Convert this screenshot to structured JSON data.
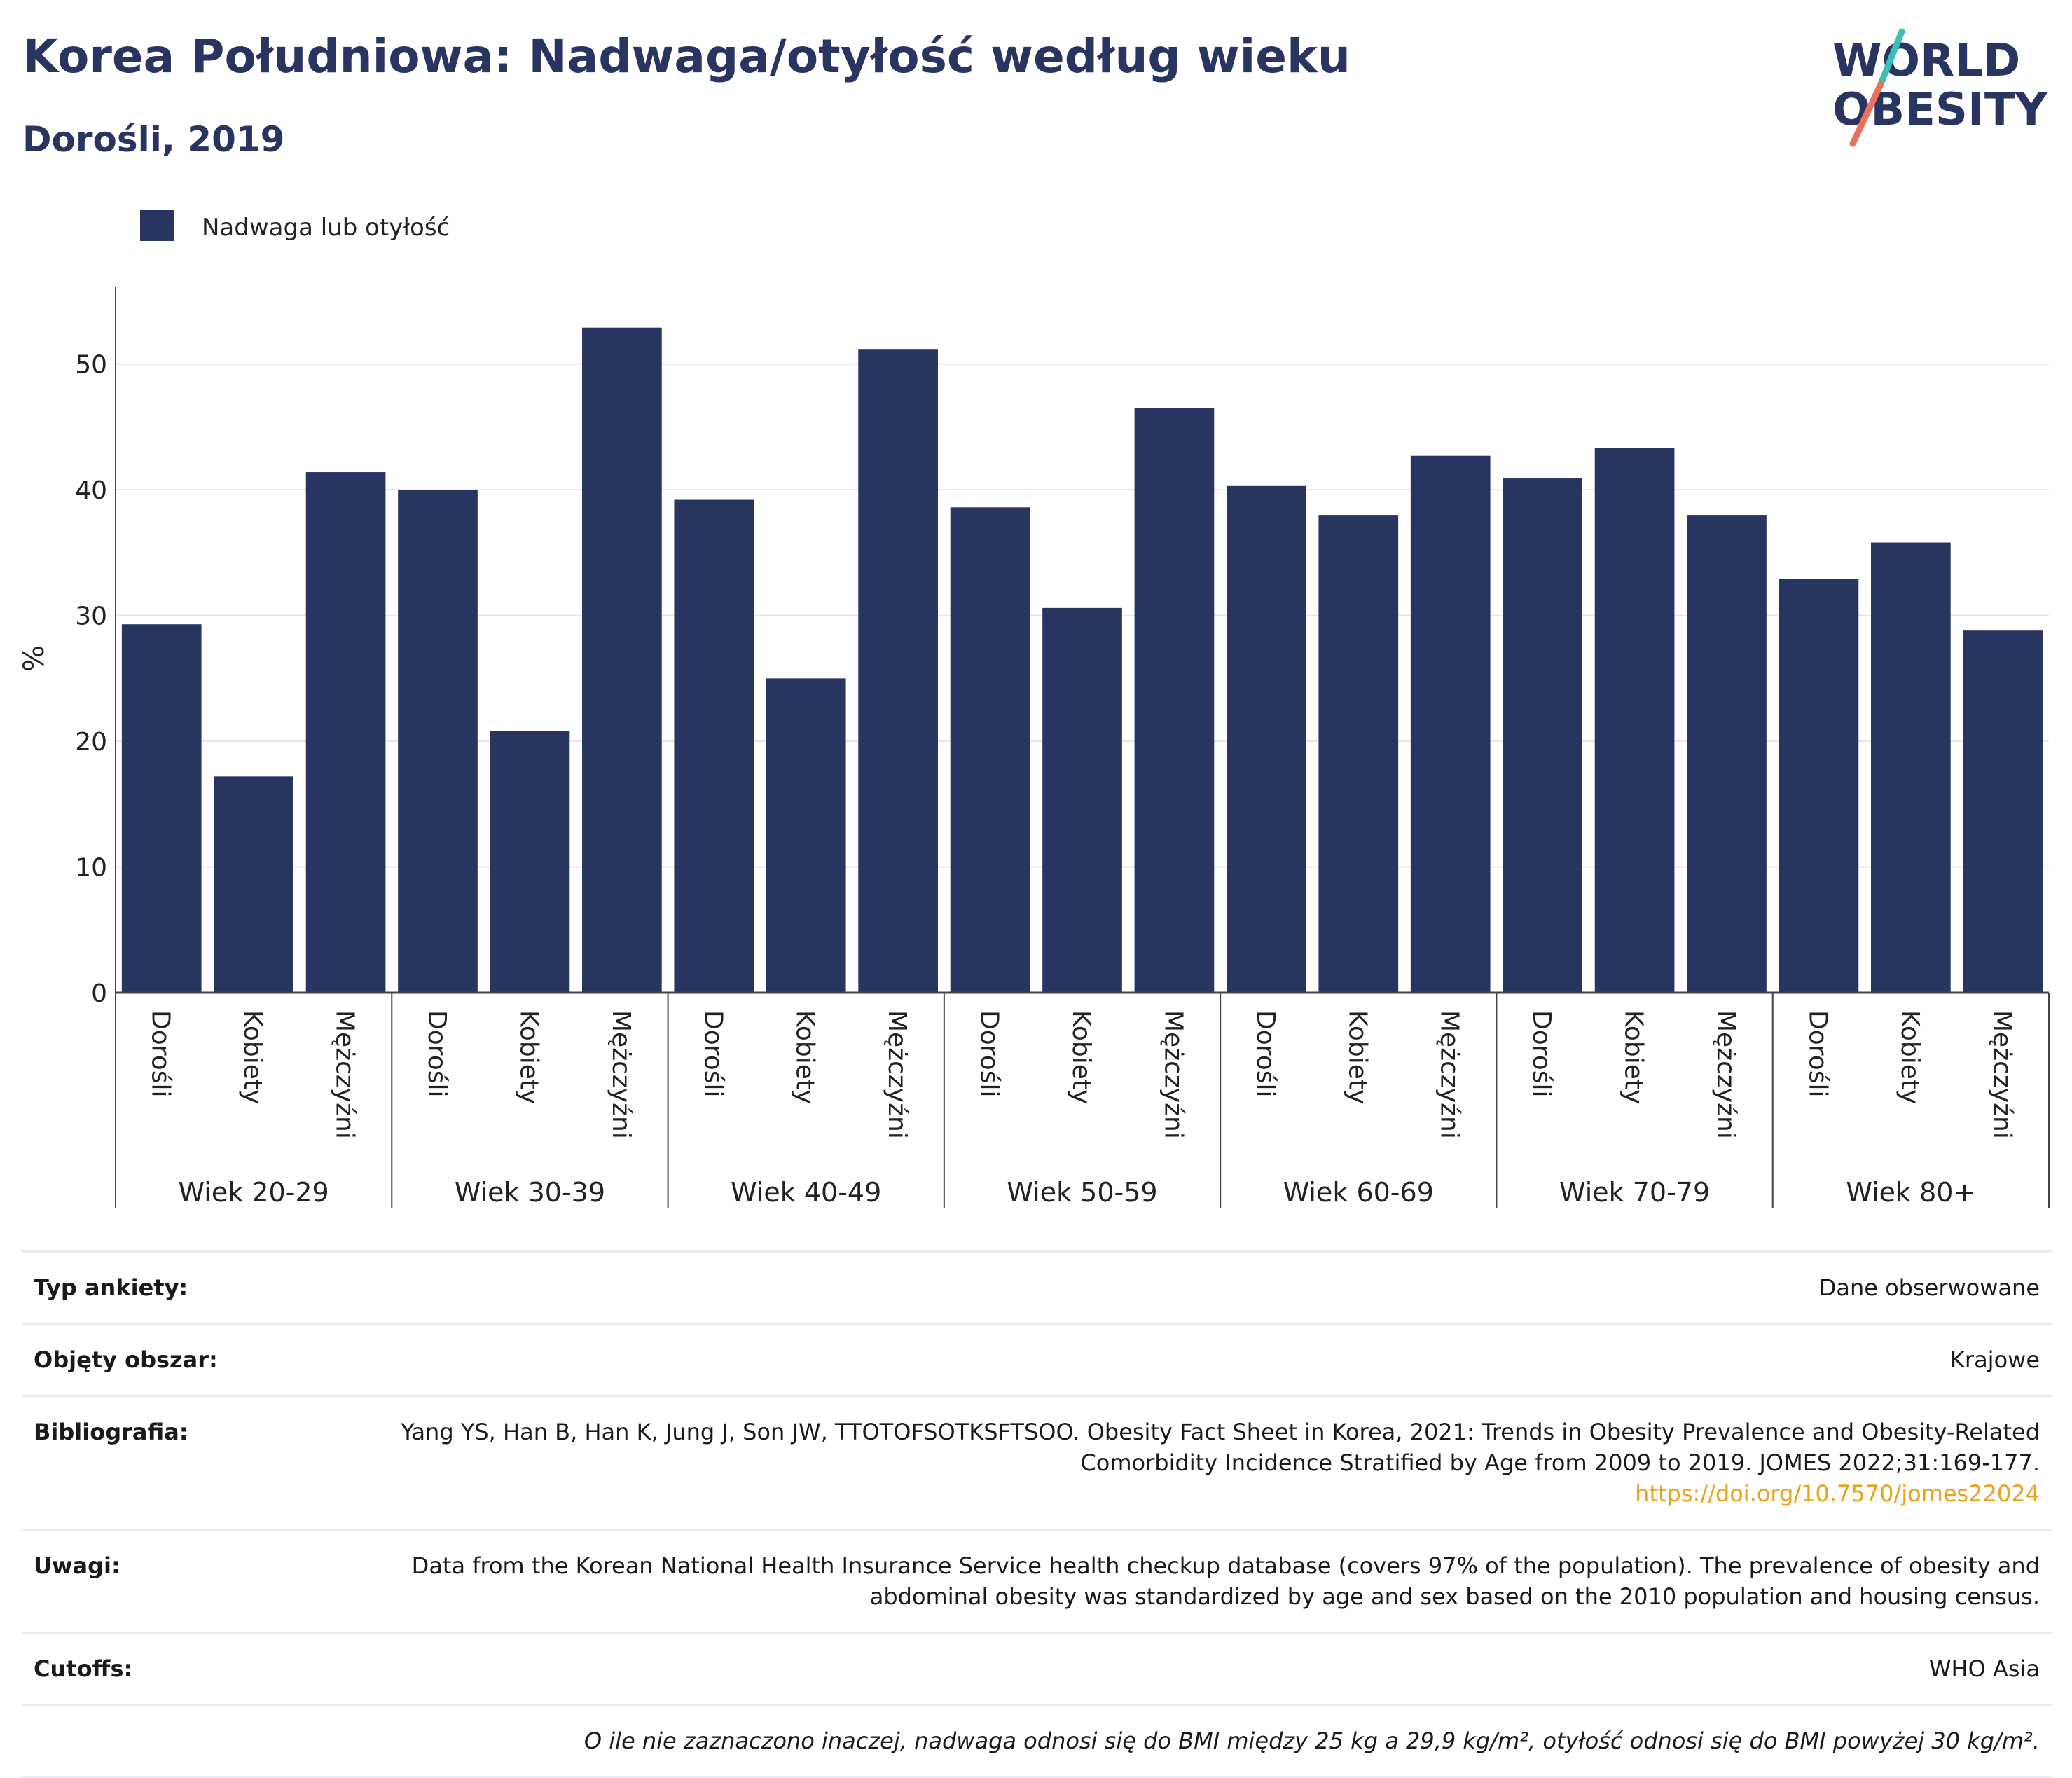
{
  "title": "Korea Południowa: Nadwaga/otyłość według wieku",
  "subtitle": "Dorośli, 2019",
  "logo": {
    "line1": "WORLD",
    "line2": "OBESITY",
    "colors": {
      "text": "#283560",
      "slash_top": "#3dbfb8",
      "slash_bottom": "#e8735a"
    }
  },
  "colors": {
    "bar": "#283560",
    "grid": "#e6e6e6",
    "link": "#e9a219"
  },
  "chart_data": {
    "type": "bar",
    "legend": {
      "label": "Nadwaga lub otyłość",
      "position": "top-left"
    },
    "ylabel": "%",
    "ylim": [
      0,
      55
    ],
    "yticks": [
      0,
      10,
      20,
      30,
      40,
      50
    ],
    "grid": true,
    "groups": [
      {
        "label": "Wiek 20-29",
        "categories": [
          "Dorośli",
          "Kobiety",
          "Mężczyźni"
        ],
        "values": [
          29.3,
          17.2,
          41.4
        ]
      },
      {
        "label": "Wiek 30-39",
        "categories": [
          "Dorośli",
          "Kobiety",
          "Mężczyźni"
        ],
        "values": [
          40.0,
          20.8,
          52.9
        ]
      },
      {
        "label": "Wiek 40-49",
        "categories": [
          "Dorośli",
          "Kobiety",
          "Mężczyźni"
        ],
        "values": [
          39.2,
          25.0,
          51.2
        ]
      },
      {
        "label": "Wiek 50-59",
        "categories": [
          "Dorośli",
          "Kobiety",
          "Mężczyźni"
        ],
        "values": [
          38.6,
          30.6,
          46.5
        ]
      },
      {
        "label": "Wiek 60-69",
        "categories": [
          "Dorośli",
          "Kobiety",
          "Mężczyźni"
        ],
        "values": [
          40.3,
          38.0,
          42.7
        ]
      },
      {
        "label": "Wiek 70-79",
        "categories": [
          "Dorośli",
          "Kobiety",
          "Mężczyźni"
        ],
        "values": [
          40.9,
          43.3,
          38.0
        ]
      },
      {
        "label": "Wiek 80+",
        "categories": [
          "Dorośli",
          "Kobiety",
          "Mężczyźni"
        ],
        "values": [
          32.9,
          35.8,
          28.8
        ]
      }
    ]
  },
  "info": [
    {
      "key": "Typ ankiety:",
      "value": "Dane obserwowane"
    },
    {
      "key": "Objęty obszar:",
      "value": "Krajowe"
    },
    {
      "key": "Bibliografia:",
      "value": "Yang YS, Han B, Han K, Jung J, Son JW, TTOTOFSOTKSFTSOO. Obesity Fact Sheet in Korea, 2021: Trends in Obesity Prevalence and Obesity-Related Comorbidity Incidence Stratified by Age from 2009 to 2019. JOMES 2022;31:169-177.",
      "link": "https://doi.org/10.7570/jomes22024"
    },
    {
      "key": "Uwagi:",
      "value": "Data from the Korean National Health Insurance Service health checkup database (covers 97% of the population). The prevalence of obesity and abdominal obesity was standardized by age and sex based on the 2010 population and housing census."
    },
    {
      "key": "Cutoffs:",
      "value": "WHO Asia"
    }
  ],
  "footnote": "O ile nie zaznaczono inaczej, nadwaga odnosi się do BMI między 25 kg a 29,9 kg/m², otyłość odnosi się do BMI powyżej 30 kg/m²."
}
